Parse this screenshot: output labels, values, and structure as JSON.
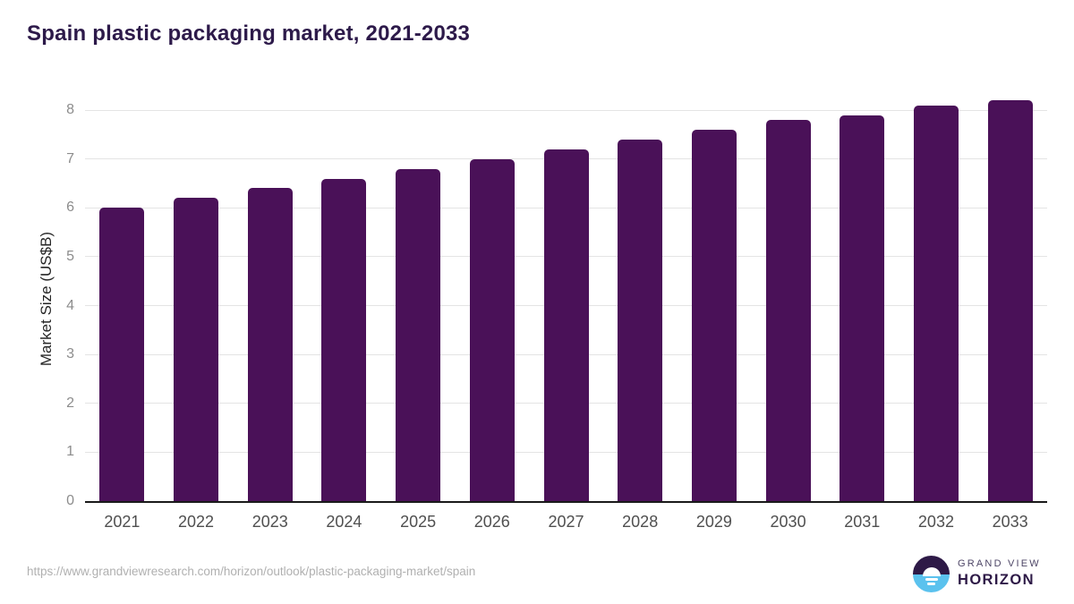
{
  "header": {
    "title": "Spain plastic packaging market, 2021-2033"
  },
  "chart_data": {
    "type": "bar",
    "title": "Spain plastic packaging market, 2021-2033",
    "categories": [
      "2021",
      "2022",
      "2023",
      "2024",
      "2025",
      "2026",
      "2027",
      "2028",
      "2029",
      "2030",
      "2031",
      "2032",
      "2033"
    ],
    "values": [
      6.0,
      6.2,
      6.4,
      6.6,
      6.8,
      7.0,
      7.2,
      7.4,
      7.6,
      7.8,
      7.9,
      8.1,
      8.2
    ],
    "xlabel": "",
    "ylabel": "Market Size (US$B)",
    "ylim": [
      0,
      8.33
    ],
    "yticks": [
      0,
      1,
      2,
      3,
      4,
      5,
      6,
      7,
      8
    ],
    "grid": "horizontal-gridlines-on",
    "legend": "none",
    "bar_color": "#4a1158",
    "gridline_color": "#e4e4e4",
    "axis_line_color": "#1a1a1a",
    "ytick_color": "#8c8c8c",
    "xtick_color": "#4f4f4f"
  },
  "footer": {
    "source_url": "https://www.grandviewresearch.com/horizon/outlook/plastic-packaging-market/spain",
    "logo": {
      "line1": "GRAND VIEW",
      "line2": "HORIZON",
      "mark_top_color": "#2e1a47",
      "mark_bottom_color": "#5bc2ee"
    }
  }
}
